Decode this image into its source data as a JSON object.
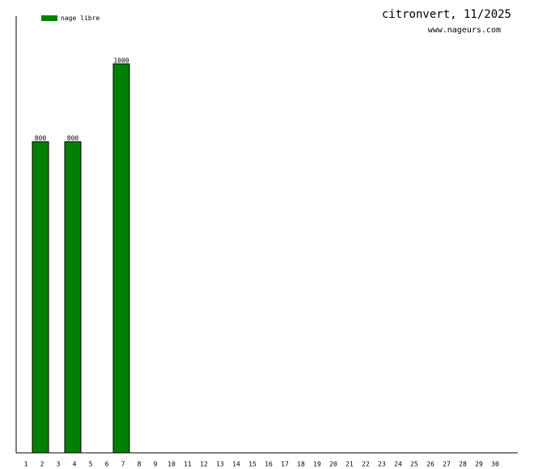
{
  "chart_data": {
    "type": "bar",
    "title": "citronvert, 11/2025",
    "subtitle": "www.nageurs.com",
    "categories": [
      "1",
      "2",
      "3",
      "4",
      "5",
      "6",
      "7",
      "8",
      "9",
      "10",
      "11",
      "12",
      "13",
      "14",
      "15",
      "16",
      "17",
      "18",
      "19",
      "20",
      "21",
      "22",
      "23",
      "24",
      "25",
      "26",
      "27",
      "28",
      "29",
      "30"
    ],
    "series": [
      {
        "name": "nage libre",
        "color": "#008000",
        "values": [
          null,
          800,
          null,
          800,
          null,
          null,
          1000,
          null,
          null,
          null,
          null,
          null,
          null,
          null,
          null,
          null,
          null,
          null,
          null,
          null,
          null,
          null,
          null,
          null,
          null,
          null,
          null,
          null,
          null,
          null
        ]
      }
    ]
  }
}
